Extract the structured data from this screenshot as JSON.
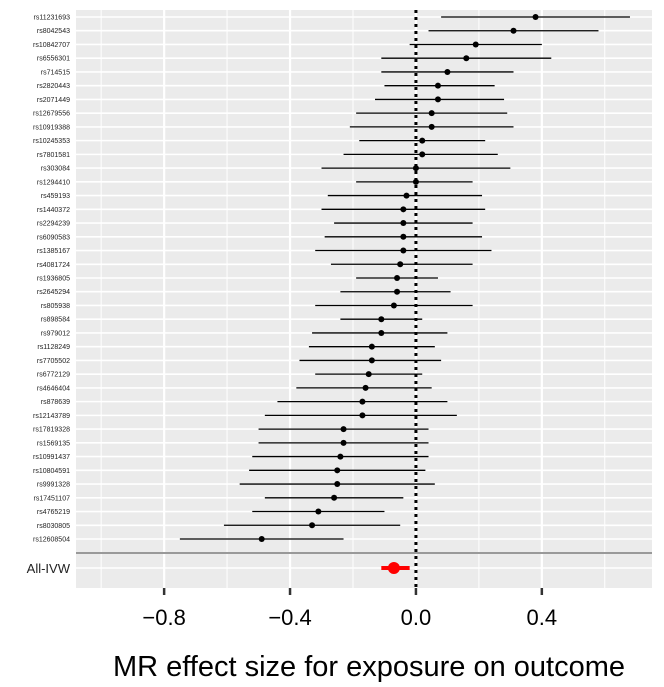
{
  "chart_data": {
    "type": "forest",
    "xlabel": "MR effect size for exposure on outcome",
    "xlim": [
      -1.08,
      0.75
    ],
    "xticks": [
      -0.8,
      -0.4,
      0.0,
      0.4
    ],
    "xtick_labels": [
      "−0.8",
      "−0.4",
      "0.0",
      "0.4"
    ],
    "reference_line": 0,
    "grid": true,
    "colors": {
      "panel": "#ebebeb",
      "grid": "#ffffff",
      "point": "#000000",
      "ivw": "#ff0000",
      "separator": "#999999"
    },
    "snps": [
      {
        "label": "rs11231693",
        "est": 0.38,
        "lo": 0.08,
        "hi": 0.68
      },
      {
        "label": "rs8042543",
        "est": 0.31,
        "lo": 0.04,
        "hi": 0.58
      },
      {
        "label": "rs10842707",
        "est": 0.19,
        "lo": -0.02,
        "hi": 0.4
      },
      {
        "label": "rs6556301",
        "est": 0.16,
        "lo": -0.11,
        "hi": 0.43
      },
      {
        "label": "rs714515",
        "est": 0.1,
        "lo": -0.11,
        "hi": 0.31
      },
      {
        "label": "rs2820443",
        "est": 0.07,
        "lo": -0.1,
        "hi": 0.25
      },
      {
        "label": "rs2071449",
        "est": 0.07,
        "lo": -0.13,
        "hi": 0.28
      },
      {
        "label": "rs12679556",
        "est": 0.05,
        "lo": -0.19,
        "hi": 0.29
      },
      {
        "label": "rs10919388",
        "est": 0.05,
        "lo": -0.21,
        "hi": 0.31
      },
      {
        "label": "rs10245353",
        "est": 0.02,
        "lo": -0.18,
        "hi": 0.22
      },
      {
        "label": "rs7801581",
        "est": 0.02,
        "lo": -0.23,
        "hi": 0.26
      },
      {
        "label": "rs303084",
        "est": 0.0,
        "lo": -0.3,
        "hi": 0.3
      },
      {
        "label": "rs1294410",
        "est": 0.0,
        "lo": -0.19,
        "hi": 0.18
      },
      {
        "label": "rs459193",
        "est": -0.03,
        "lo": -0.28,
        "hi": 0.21
      },
      {
        "label": "rs1440372",
        "est": -0.04,
        "lo": -0.3,
        "hi": 0.22
      },
      {
        "label": "rs2294239",
        "est": -0.04,
        "lo": -0.26,
        "hi": 0.18
      },
      {
        "label": "rs6090583",
        "est": -0.04,
        "lo": -0.29,
        "hi": 0.21
      },
      {
        "label": "rs1385167",
        "est": -0.04,
        "lo": -0.32,
        "hi": 0.24
      },
      {
        "label": "rs4081724",
        "est": -0.05,
        "lo": -0.27,
        "hi": 0.18
      },
      {
        "label": "rs1936805",
        "est": -0.06,
        "lo": -0.19,
        "hi": 0.07
      },
      {
        "label": "rs2645294",
        "est": -0.06,
        "lo": -0.24,
        "hi": 0.11
      },
      {
        "label": "rs805938",
        "est": -0.07,
        "lo": -0.32,
        "hi": 0.18
      },
      {
        "label": "rs898584",
        "est": -0.11,
        "lo": -0.24,
        "hi": 0.02
      },
      {
        "label": "rs979012",
        "est": -0.11,
        "lo": -0.33,
        "hi": 0.1
      },
      {
        "label": "rs1128249",
        "est": -0.14,
        "lo": -0.34,
        "hi": 0.06
      },
      {
        "label": "rs7705502",
        "est": -0.14,
        "lo": -0.37,
        "hi": 0.08
      },
      {
        "label": "rs6772129",
        "est": -0.15,
        "lo": -0.32,
        "hi": 0.02
      },
      {
        "label": "rs4646404",
        "est": -0.16,
        "lo": -0.38,
        "hi": 0.05
      },
      {
        "label": "rs878639",
        "est": -0.17,
        "lo": -0.44,
        "hi": 0.1
      },
      {
        "label": "rs12143789",
        "est": -0.17,
        "lo": -0.48,
        "hi": 0.13
      },
      {
        "label": "rs17819328",
        "est": -0.23,
        "lo": -0.5,
        "hi": 0.04
      },
      {
        "label": "rs1569135",
        "est": -0.23,
        "lo": -0.5,
        "hi": 0.04
      },
      {
        "label": "rs10991437",
        "est": -0.24,
        "lo": -0.52,
        "hi": 0.04
      },
      {
        "label": "rs10804591",
        "est": -0.25,
        "lo": -0.53,
        "hi": 0.03
      },
      {
        "label": "rs9991328",
        "est": -0.25,
        "lo": -0.56,
        "hi": 0.06
      },
      {
        "label": "rs17451107",
        "est": -0.26,
        "lo": -0.48,
        "hi": -0.04
      },
      {
        "label": "rs4765219",
        "est": -0.31,
        "lo": -0.52,
        "hi": -0.1
      },
      {
        "label": "rs8030805",
        "est": -0.33,
        "lo": -0.61,
        "hi": -0.05
      },
      {
        "label": "rs12608504",
        "est": -0.49,
        "lo": -0.75,
        "hi": -0.23
      }
    ],
    "summary": {
      "label": "All-IVW",
      "est": -0.07,
      "lo": -0.11,
      "hi": -0.02
    }
  }
}
